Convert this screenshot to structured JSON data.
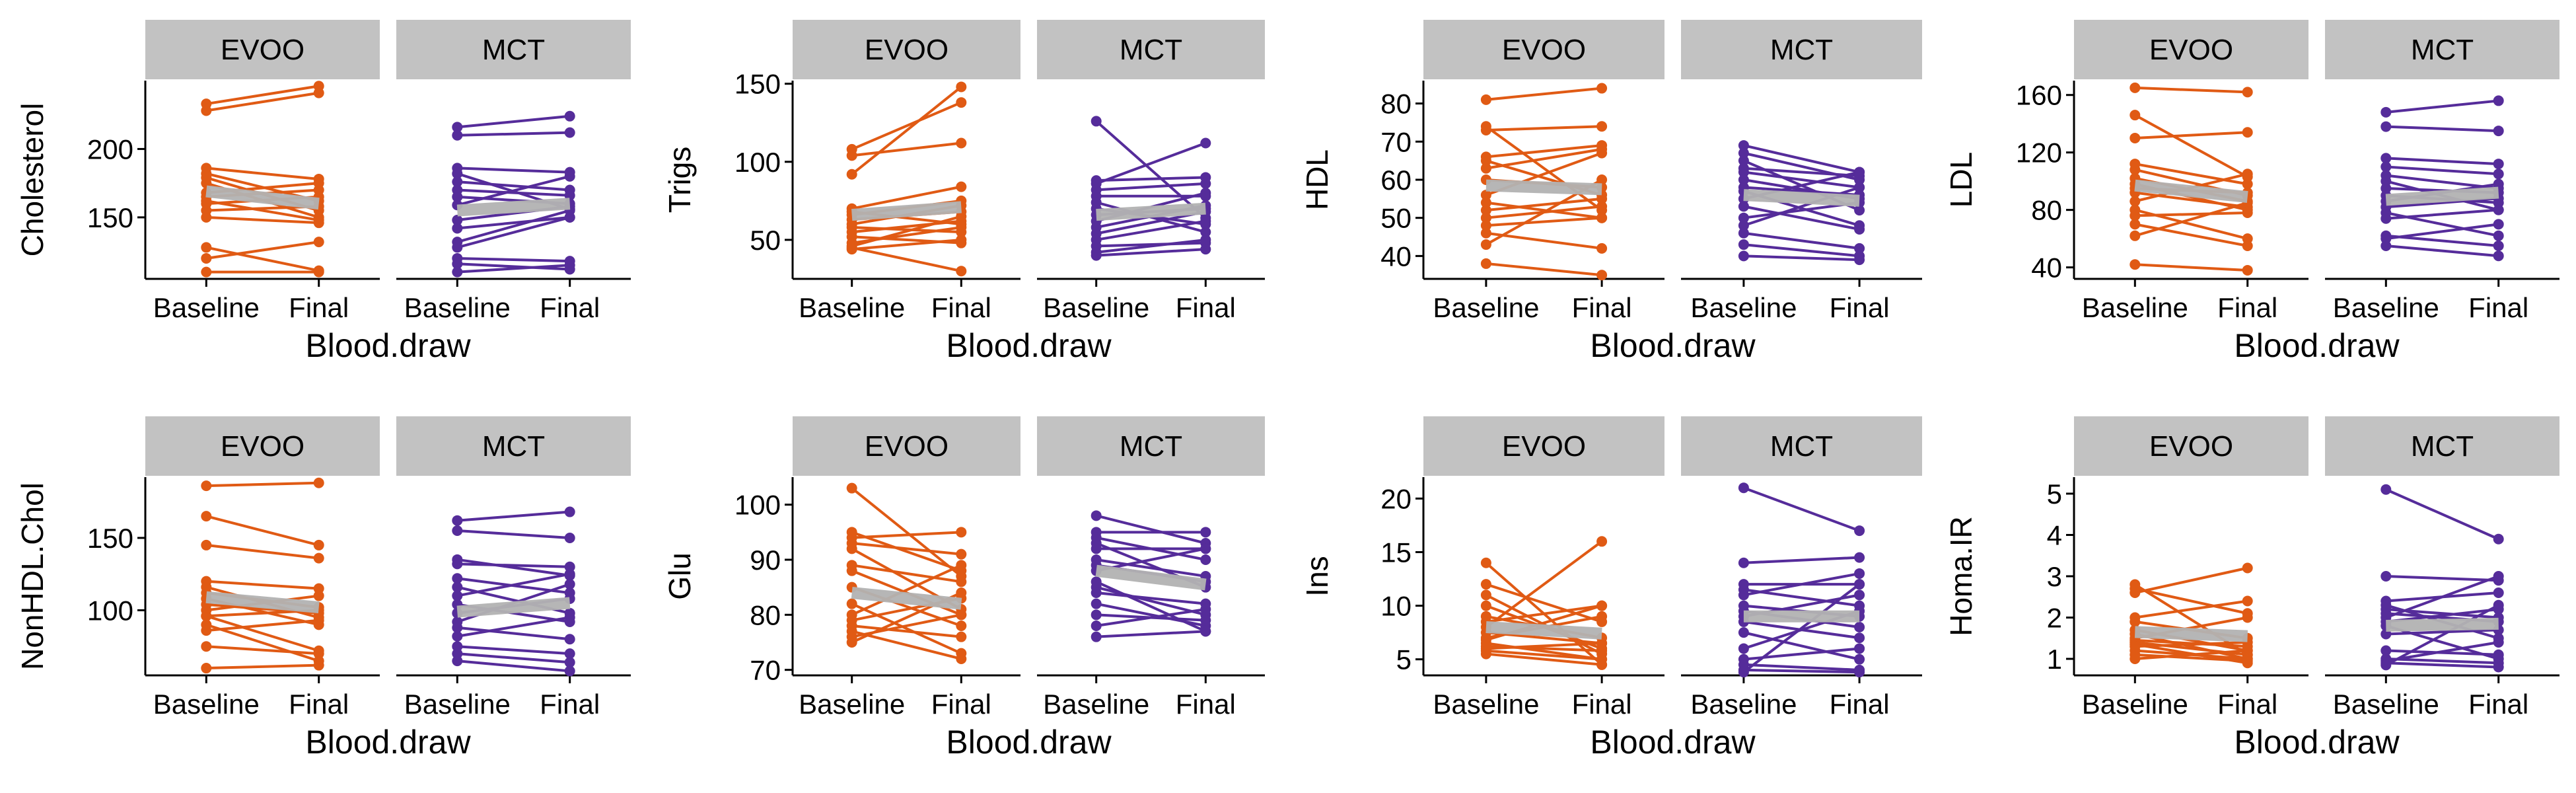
{
  "colors": {
    "EVOO": "#e05a14",
    "MCT": "#552c9a",
    "mean_line": "#b3b3b3",
    "strip": "#c2c2c2",
    "axis": "#000000"
  },
  "x_axis_label": "Blood.draw",
  "x_ticks": [
    "Baseline",
    "Final"
  ],
  "chart_data": [
    {
      "type": "line",
      "ylabel": "Cholesterol",
      "ylim": [
        105,
        250
      ],
      "yticks": [
        150,
        200
      ],
      "panels": [
        {
          "facet": "EVOO",
          "mean": [
            169,
            160
          ],
          "subjects": [
            [
              233,
              246
            ],
            [
              228,
              241
            ],
            [
              186,
              178
            ],
            [
              182,
              162
            ],
            [
              179,
              155
            ],
            [
              175,
              150
            ],
            [
              168,
              175
            ],
            [
              165,
              170
            ],
            [
              162,
              148
            ],
            [
              160,
              165
            ],
            [
              155,
              158
            ],
            [
              150,
              146
            ],
            [
              128,
              111
            ],
            [
              120,
              132
            ],
            [
              110,
              110
            ]
          ]
        },
        {
          "facet": "MCT",
          "mean": [
            155,
            160
          ],
          "subjects": [
            [
              216,
              224
            ],
            [
              210,
              212
            ],
            [
              186,
              183
            ],
            [
              182,
              156
            ],
            [
              176,
              170
            ],
            [
              170,
              166
            ],
            [
              165,
              160
            ],
            [
              159,
              180
            ],
            [
              148,
              158
            ],
            [
              142,
              150
            ],
            [
              132,
              155
            ],
            [
              128,
              150
            ],
            [
              120,
              118
            ],
            [
              116,
              112
            ],
            [
              110,
              115
            ]
          ]
        }
      ]
    },
    {
      "type": "line",
      "ylabel": "Trigs",
      "ylim": [
        25,
        152
      ],
      "yticks": [
        50,
        100,
        150
      ],
      "panels": [
        {
          "facet": "EVOO",
          "mean": [
            66,
            71
          ],
          "subjects": [
            [
              108,
              138
            ],
            [
              104,
              112
            ],
            [
              92,
              148
            ],
            [
              70,
              84
            ],
            [
              68,
              60
            ],
            [
              66,
              75
            ],
            [
              63,
              68
            ],
            [
              60,
              72
            ],
            [
              58,
              55
            ],
            [
              55,
              62
            ],
            [
              52,
              48
            ],
            [
              48,
              58
            ],
            [
              46,
              65
            ],
            [
              45,
              30
            ],
            [
              44,
              50
            ]
          ]
        },
        {
          "facet": "MCT",
          "mean": [
            66,
            70
          ],
          "subjects": [
            [
              126,
              64
            ],
            [
              88,
              90
            ],
            [
              86,
              112
            ],
            [
              82,
              86
            ],
            [
              78,
              78
            ],
            [
              74,
              55
            ],
            [
              70,
              60
            ],
            [
              66,
              70
            ],
            [
              62,
              80
            ],
            [
              58,
              72
            ],
            [
              54,
              68
            ],
            [
              50,
              62
            ],
            [
              46,
              48
            ],
            [
              42,
              50
            ],
            [
              40,
              44
            ]
          ]
        }
      ]
    },
    {
      "type": "line",
      "ylabel": "HDL",
      "ylim": [
        34,
        86
      ],
      "yticks": [
        40,
        50,
        60,
        70,
        80
      ],
      "panels": [
        {
          "facet": "EVOO",
          "mean": [
            58.5,
            57.5
          ],
          "subjects": [
            [
              81,
              84
            ],
            [
              74,
              52
            ],
            [
              73,
              74
            ],
            [
              66,
              69
            ],
            [
              65,
              56
            ],
            [
              63,
              68
            ],
            [
              60,
              58
            ],
            [
              56,
              67
            ],
            [
              54,
              50
            ],
            [
              52,
              55
            ],
            [
              50,
              53
            ],
            [
              48,
              50
            ],
            [
              46,
              42
            ],
            [
              43,
              60
            ],
            [
              38,
              35
            ]
          ]
        },
        {
          "facet": "MCT",
          "mean": [
            56,
            54.5
          ],
          "subjects": [
            [
              69,
              62
            ],
            [
              67,
              60
            ],
            [
              65,
              52
            ],
            [
              63,
              61
            ],
            [
              62,
              58
            ],
            [
              60,
              55
            ],
            [
              58,
              56
            ],
            [
              57,
              48
            ],
            [
              55,
              62
            ],
            [
              53,
              47
            ],
            [
              50,
              54
            ],
            [
              48,
              58
            ],
            [
              46,
              42
            ],
            [
              43,
              40
            ],
            [
              40,
              39
            ]
          ]
        }
      ]
    },
    {
      "type": "line",
      "ylabel": "LDL",
      "ylim": [
        32,
        170
      ],
      "yticks": [
        40,
        80,
        120,
        160
      ],
      "panels": [
        {
          "facet": "EVOO",
          "mean": [
            97,
            89
          ],
          "subjects": [
            [
              165,
              162
            ],
            [
              146,
              103
            ],
            [
              130,
              134
            ],
            [
              112,
              98
            ],
            [
              108,
              90
            ],
            [
              102,
              86
            ],
            [
              98,
              80
            ],
            [
              95,
              92
            ],
            [
              92,
              82
            ],
            [
              86,
              105
            ],
            [
              80,
              60
            ],
            [
              76,
              78
            ],
            [
              70,
              55
            ],
            [
              62,
              85
            ],
            [
              42,
              38
            ]
          ]
        },
        {
          "facet": "MCT",
          "mean": [
            87,
            92
          ],
          "subjects": [
            [
              148,
              156
            ],
            [
              138,
              135
            ],
            [
              116,
              112
            ],
            [
              110,
              105
            ],
            [
              104,
              95
            ],
            [
              100,
              80
            ],
            [
              95,
              92
            ],
            [
              90,
              85
            ],
            [
              86,
              98
            ],
            [
              82,
              88
            ],
            [
              78,
              62
            ],
            [
              74,
              80
            ],
            [
              62,
              55
            ],
            [
              60,
              70
            ],
            [
              55,
              48
            ]
          ]
        }
      ]
    },
    {
      "type": "line",
      "ylabel": "NonHDL.Chol",
      "ylim": [
        55,
        192
      ],
      "yticks": [
        100,
        150
      ],
      "panels": [
        {
          "facet": "EVOO",
          "mean": [
            109,
            102
          ],
          "subjects": [
            [
              186,
              188
            ],
            [
              165,
              145
            ],
            [
              145,
              136
            ],
            [
              120,
              115
            ],
            [
              116,
              95
            ],
            [
              112,
              102
            ],
            [
              108,
              90
            ],
            [
              104,
              98
            ],
            [
              100,
              110
            ],
            [
              96,
              72
            ],
            [
              90,
              65
            ],
            [
              86,
              93
            ],
            [
              75,
              70
            ],
            [
              60,
              62
            ],
            [
              96,
              100
            ]
          ]
        },
        {
          "facet": "MCT",
          "mean": [
            99,
            105
          ],
          "subjects": [
            [
              162,
              168
            ],
            [
              155,
              150
            ],
            [
              135,
              124
            ],
            [
              132,
              130
            ],
            [
              122,
              112
            ],
            [
              116,
              98
            ],
            [
              110,
              125
            ],
            [
              104,
              92
            ],
            [
              98,
              108
            ],
            [
              92,
              118
            ],
            [
              88,
              80
            ],
            [
              82,
              95
            ],
            [
              75,
              70
            ],
            [
              70,
              64
            ],
            [
              65,
              58
            ]
          ]
        }
      ]
    },
    {
      "type": "line",
      "ylabel": "Glu",
      "ylim": [
        69,
        105
      ],
      "yticks": [
        70,
        80,
        90,
        100
      ],
      "panels": [
        {
          "facet": "EVOO",
          "mean": [
            84,
            82
          ],
          "subjects": [
            [
              103,
              87
            ],
            [
              95,
              88
            ],
            [
              94,
              95
            ],
            [
              93,
              91
            ],
            [
              92,
              81
            ],
            [
              89,
              86
            ],
            [
              88,
              80
            ],
            [
              85,
              78
            ],
            [
              82,
              73
            ],
            [
              80,
              89
            ],
            [
              79,
              83
            ],
            [
              78,
              76
            ],
            [
              77,
              72
            ],
            [
              76,
              80
            ],
            [
              75,
              84
            ]
          ]
        },
        {
          "facet": "MCT",
          "mean": [
            88,
            85.5
          ],
          "subjects": [
            [
              98,
              93
            ],
            [
              95,
              95
            ],
            [
              94,
              90
            ],
            [
              93,
              85
            ],
            [
              92,
              92
            ],
            [
              90,
              87
            ],
            [
              89,
              86
            ],
            [
              88,
              92
            ],
            [
              86,
              77
            ],
            [
              85,
              80
            ],
            [
              84,
              82
            ],
            [
              82,
              78
            ],
            [
              80,
              79
            ],
            [
              78,
              81
            ],
            [
              76,
              77
            ]
          ]
        }
      ]
    },
    {
      "type": "line",
      "ylabel": "Ins",
      "ylim": [
        3.5,
        22
      ],
      "yticks": [
        5,
        10,
        15,
        20
      ],
      "panels": [
        {
          "facet": "EVOO",
          "mean": [
            8.0,
            7.4
          ],
          "subjects": [
            [
              14,
              4.5
            ],
            [
              12,
              8.5
            ],
            [
              11,
              5.5
            ],
            [
              10,
              6
            ],
            [
              9,
              7
            ],
            [
              8.5,
              10
            ],
            [
              8,
              16
            ],
            [
              7.5,
              6.5
            ],
            [
              7,
              9
            ],
            [
              6.8,
              10
            ],
            [
              6.5,
              5
            ],
            [
              6.2,
              5.8
            ],
            [
              6,
              6.5
            ],
            [
              5.8,
              5
            ],
            [
              5.5,
              4.5
            ]
          ]
        },
        {
          "facet": "MCT",
          "mean": [
            9.0,
            9.0
          ],
          "subjects": [
            [
              21,
              17
            ],
            [
              14,
              14.5
            ],
            [
              12,
              12
            ],
            [
              11.5,
              10
            ],
            [
              11,
              13
            ],
            [
              10,
              9
            ],
            [
              9.5,
              8
            ],
            [
              9,
              11
            ],
            [
              8.5,
              7
            ],
            [
              7.5,
              5
            ],
            [
              6,
              9.5
            ],
            [
              5,
              6
            ],
            [
              4.5,
              4
            ],
            [
              4,
              3.8
            ],
            [
              3.8,
              12
            ]
          ]
        }
      ]
    },
    {
      "type": "line",
      "ylabel": "Homa.IR",
      "ylim": [
        0.6,
        5.4
      ],
      "yticks": [
        1,
        2,
        3,
        4,
        5
      ],
      "panels": [
        {
          "facet": "EVOO",
          "mean": [
            1.65,
            1.55
          ],
          "subjects": [
            [
              2.8,
              1.1
            ],
            [
              2.7,
              2.1
            ],
            [
              2.6,
              3.2
            ],
            [
              2.0,
              2.4
            ],
            [
              1.9,
              1.5
            ],
            [
              1.7,
              1.2
            ],
            [
              1.6,
              1.0
            ],
            [
              1.5,
              2.0
            ],
            [
              1.45,
              1.3
            ],
            [
              1.4,
              1.1
            ],
            [
              1.35,
              0.9
            ],
            [
              1.3,
              1.4
            ],
            [
              1.2,
              1.0
            ],
            [
              1.1,
              0.95
            ],
            [
              1.0,
              1.2
            ]
          ]
        },
        {
          "facet": "MCT",
          "mean": [
            1.8,
            1.85
          ],
          "subjects": [
            [
              5.1,
              3.9
            ],
            [
              3.0,
              2.9
            ],
            [
              2.4,
              2.6
            ],
            [
              2.3,
              1.5
            ],
            [
              2.2,
              2.0
            ],
            [
              2.1,
              1.9
            ],
            [
              2.0,
              3.0
            ],
            [
              1.9,
              2.2
            ],
            [
              1.8,
              1.0
            ],
            [
              1.6,
              1.7
            ],
            [
              1.2,
              1.1
            ],
            [
              1.0,
              0.9
            ],
            [
              0.95,
              1.4
            ],
            [
              0.9,
              0.8
            ],
            [
              0.85,
              2.3
            ]
          ]
        }
      ]
    }
  ]
}
